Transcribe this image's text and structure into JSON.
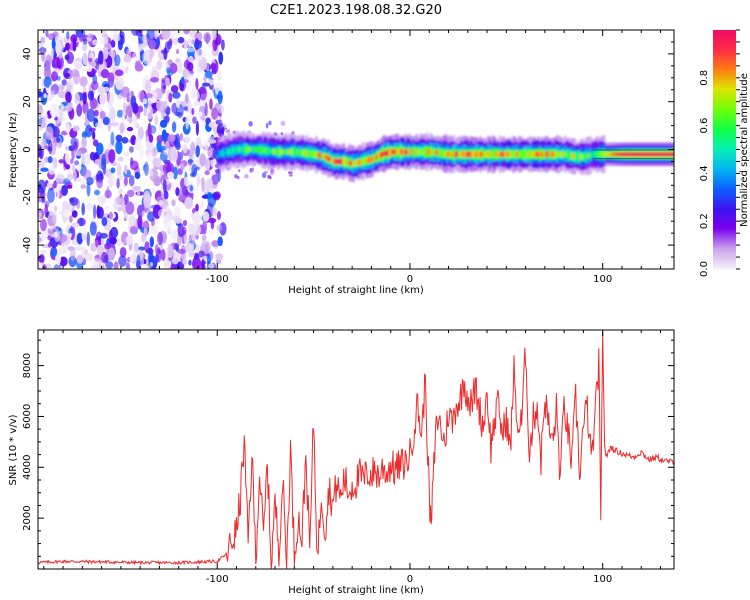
{
  "figure": {
    "title": "C2E1.2023.198.08.32.G20"
  },
  "chart_data": [
    {
      "type": "heatmap",
      "xlabel": "Height of straight line (km)",
      "ylabel": "Frequency (Hz)",
      "xlim": [
        -193,
        137
      ],
      "ylim": [
        -50,
        50
      ],
      "xticks": [
        -100,
        0,
        100
      ],
      "yticks": [
        -40,
        -20,
        0,
        20,
        40
      ],
      "colorbar": {
        "label": "Normalized spectral amplitude",
        "range": [
          0,
          1
        ],
        "ticks": [
          0.0,
          0.2,
          0.4,
          0.6,
          0.8
        ],
        "colormap": [
          "#f4eefa",
          "#c8a0ec",
          "#7a00ee",
          "#3a16f2",
          "#0d62ff",
          "#02b8f2",
          "#06f0b2",
          "#12ff44",
          "#74ff06",
          "#dfe400",
          "#ff7a14",
          "#ff2a4a",
          "#ee0a66"
        ]
      },
      "noise_region": {
        "x_from": -193,
        "x_to": -97,
        "freq_from": -50,
        "freq_to": 50,
        "peak_amplitude": 0.35
      },
      "signal_ridge": {
        "x": [
          -100,
          -90,
          -80,
          -70,
          -60,
          -50,
          -45,
          -40,
          -35,
          -30,
          -25,
          -20,
          -15,
          -10,
          -5,
          0,
          10,
          20,
          30,
          40,
          50,
          60,
          70,
          80,
          85,
          90,
          95,
          100,
          110,
          120,
          137
        ],
        "frequency": [
          -2,
          0,
          0,
          -1,
          -1,
          -2,
          -3,
          -5,
          -5,
          -6,
          -5,
          -4,
          -2,
          -1,
          -1,
          -1,
          -1,
          -2,
          -2,
          -2,
          -2,
          -2,
          -2,
          -2,
          -3,
          -3,
          -2,
          -2,
          -2,
          -2,
          -2
        ],
        "amplitude": [
          0.45,
          0.55,
          0.6,
          0.6,
          0.65,
          0.7,
          0.75,
          0.8,
          0.8,
          0.75,
          0.75,
          0.8,
          0.85,
          0.9,
          0.85,
          0.7,
          0.75,
          0.75,
          0.8,
          0.75,
          0.75,
          0.8,
          0.8,
          0.7,
          0.65,
          0.6,
          0.55,
          0.7,
          0.95,
          0.98,
          0.98
        ]
      }
    },
    {
      "type": "line",
      "xlabel": "Height of straight line (km)",
      "ylabel": "SNR (10 * v/v)",
      "xlim": [
        -193,
        137
      ],
      "ylim": [
        0,
        9400
      ],
      "xticks": [
        -100,
        0,
        100
      ],
      "yticks": [
        2000,
        4000,
        6000,
        8000
      ],
      "series": [
        {
          "color": "#ee2a2a",
          "x": [
            -193,
            -180,
            -160,
            -140,
            -120,
            -100,
            -95,
            -90,
            -88,
            -86,
            -84,
            -82,
            -80,
            -78,
            -76,
            -74,
            -72,
            -70,
            -68,
            -66,
            -64,
            -62,
            -60,
            -58,
            -56,
            -54,
            -52,
            -50,
            -48,
            -46,
            -44,
            -42,
            -40,
            -38,
            -36,
            -34,
            -32,
            -30,
            -28,
            -26,
            -24,
            -22,
            -20,
            -18,
            -16,
            -14,
            -12,
            -10,
            -8,
            -6,
            -4,
            -2,
            0,
            2,
            4,
            6,
            8,
            10,
            11,
            12,
            14,
            16,
            18,
            20,
            22,
            24,
            26,
            28,
            30,
            32,
            34,
            36,
            38,
            40,
            42,
            44,
            46,
            48,
            50,
            52,
            54,
            56,
            58,
            60,
            62,
            64,
            66,
            68,
            70,
            72,
            74,
            76,
            78,
            80,
            82,
            84,
            86,
            88,
            90,
            92,
            94,
            96,
            98,
            99,
            100,
            101,
            102,
            104,
            108,
            112,
            116,
            120,
            124,
            128,
            132,
            137
          ],
          "y": [
            250,
            300,
            280,
            250,
            250,
            300,
            600,
            1500,
            2800,
            5000,
            1000,
            4500,
            500,
            3800,
            1200,
            4200,
            300,
            2600,
            800,
            3500,
            200,
            4800,
            600,
            2000,
            1200,
            4500,
            700,
            5900,
            300,
            3000,
            1500,
            3200,
            2500,
            3400,
            2800,
            3600,
            3000,
            3300,
            3400,
            3700,
            3500,
            3800,
            3700,
            3900,
            3600,
            4000,
            3800,
            4100,
            3900,
            4000,
            4100,
            4200,
            4500,
            5500,
            6500,
            5200,
            7500,
            2800,
            1500,
            3500,
            6000,
            5600,
            4900,
            6200,
            5700,
            6500,
            6600,
            7400,
            6800,
            6400,
            7200,
            6300,
            5600,
            7000,
            4800,
            5900,
            6500,
            5200,
            6000,
            4600,
            7800,
            5400,
            5800,
            8600,
            4500,
            5900,
            6500,
            4300,
            6800,
            5600,
            4900,
            6300,
            3600,
            6500,
            5300,
            4200,
            6700,
            3800,
            5600,
            6400,
            4200,
            5800,
            8200,
            1500,
            9400,
            4800,
            4400,
            4800,
            4600,
            4500,
            4400,
            4600,
            4300,
            4400,
            4250,
            4200
          ]
        }
      ]
    }
  ]
}
